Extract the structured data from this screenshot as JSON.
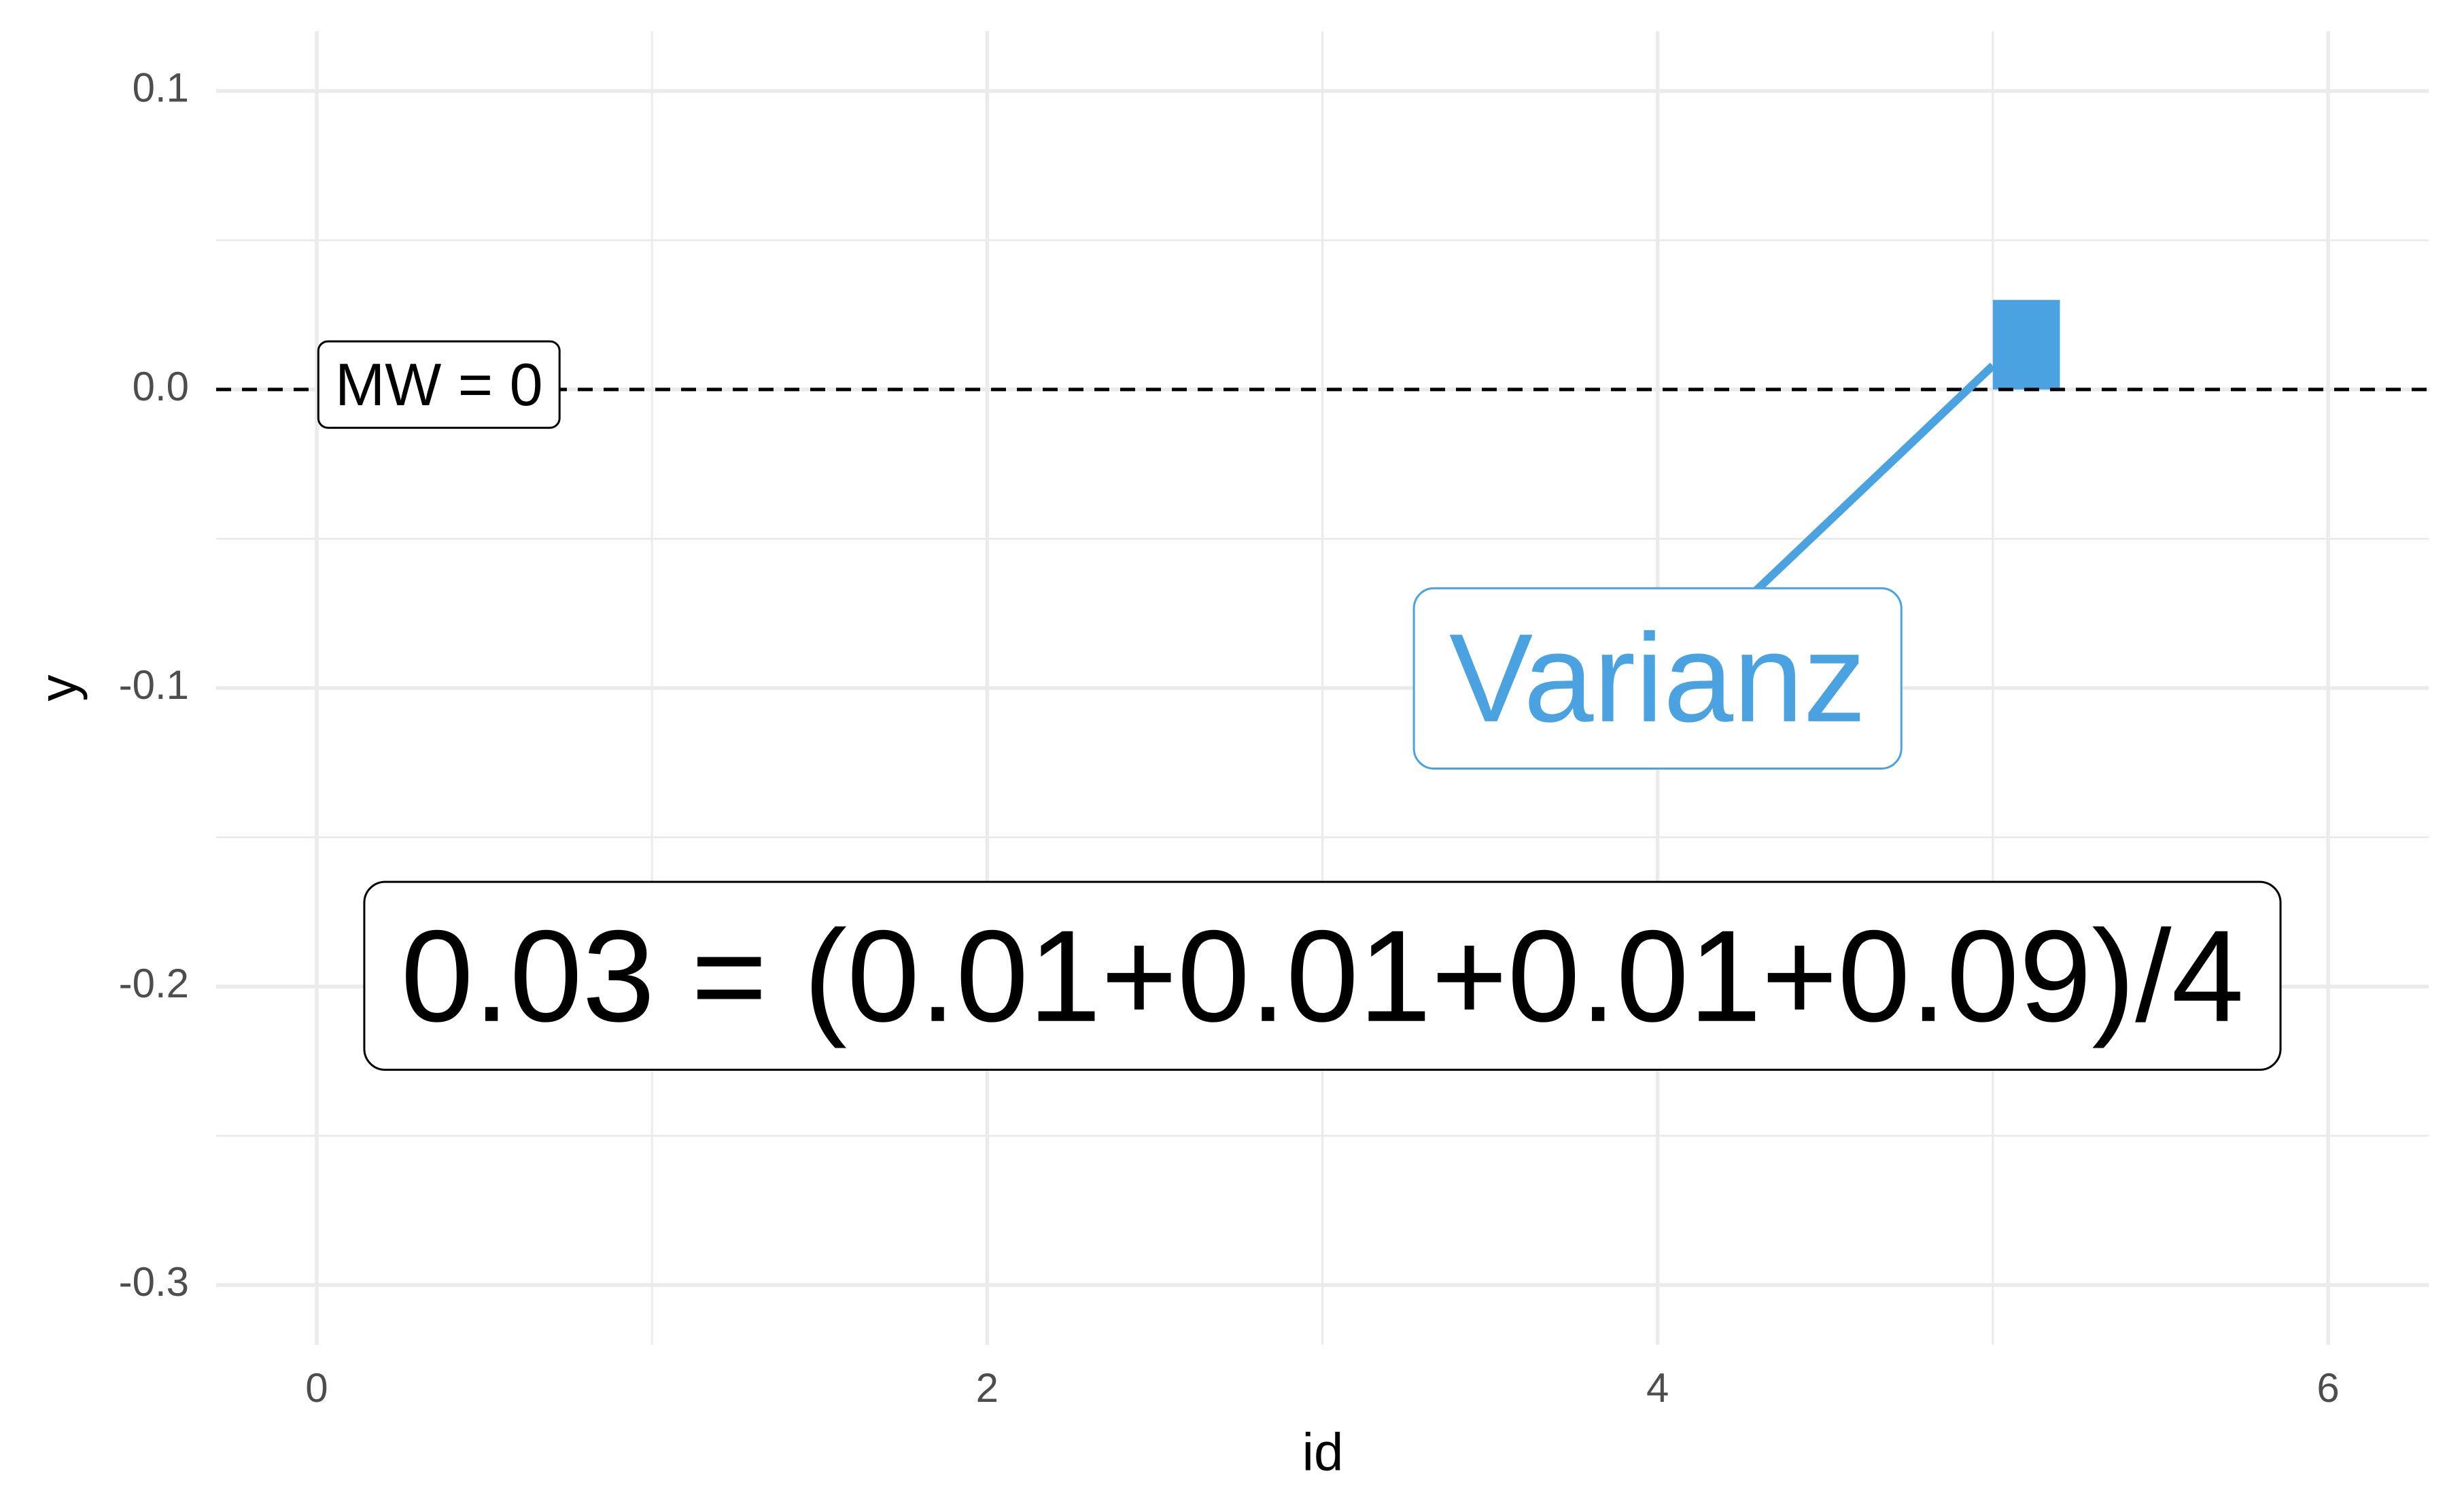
{
  "chart_data": {
    "type": "rect",
    "x_label": "id",
    "y_label": "y",
    "xlim": [
      -0.3,
      6.3
    ],
    "ylim": [
      -0.32,
      0.12
    ],
    "xticks": [
      0,
      2,
      4,
      6
    ],
    "yticks": [
      0.1,
      {
        "value": 0,
        "label": "0.0"
      },
      -0.1,
      -0.2,
      -0.3
    ],
    "xminor": [
      1,
      3,
      5
    ],
    "yminor": [
      0.05,
      -0.05,
      -0.15,
      -0.25
    ],
    "grid": true,
    "rects": [
      {
        "xmin": 5,
        "xmax": 5.2,
        "ymin": 0,
        "ymax": 0.03,
        "color": "#4aa3e0"
      }
    ],
    "hline": {
      "y": 0,
      "label": "MW = 0",
      "label_x": 0
    },
    "annotations": [
      {
        "text": "Varianz",
        "x": 4,
        "y": -0.1,
        "color": "#4aa3e0",
        "segment": {
          "x1": 4.25,
          "y1": -0.072,
          "x2": 5,
          "y2": 0.008
        }
      },
      {
        "text": "0.03 = (0.01+0.01+0.01+0.09)/4",
        "x": 3,
        "y": -0.2,
        "color": "#000000"
      }
    ]
  }
}
